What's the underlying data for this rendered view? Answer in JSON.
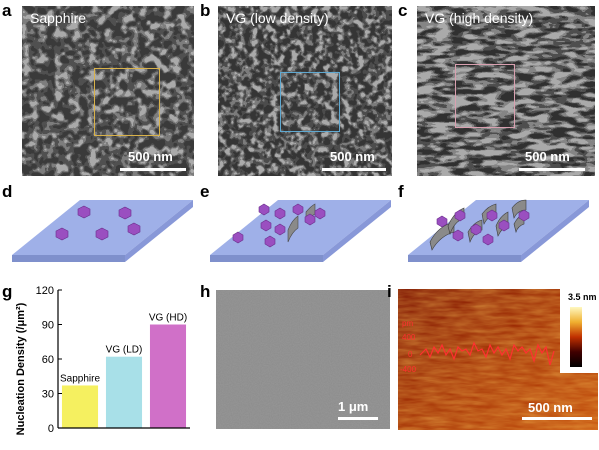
{
  "panels": {
    "a": {
      "letter": "a",
      "label": "Sapphire",
      "scale": "500 nm",
      "roi_color": "#d9b24a"
    },
    "b": {
      "letter": "b",
      "label": "VG (low density)",
      "scale": "500 nm",
      "roi_color": "#5fa8d0"
    },
    "c": {
      "letter": "c",
      "label": "VG (high density)",
      "scale": "500 nm",
      "roi_color": "#d9a0b0"
    },
    "d": {
      "letter": "d"
    },
    "e": {
      "letter": "e"
    },
    "f": {
      "letter": "f"
    },
    "g": {
      "letter": "g"
    },
    "h": {
      "letter": "h",
      "scale": "1 μm"
    },
    "i": {
      "letter": "i",
      "scale": "500 nm",
      "colorbar_max": "3.5 nm",
      "profile_y_labels": [
        "pm",
        "400",
        "0",
        "-400"
      ]
    }
  },
  "colors": {
    "substrate": "#9fb0e8",
    "hexagon": "#9a4fc0",
    "graphene": "#8a8a8a",
    "afm_low": "#8b1500",
    "afm_high": "#f0b030",
    "profile_line": "#ff3030"
  },
  "chart_data": {
    "type": "bar",
    "categories": [
      "Sapphire",
      "VG (LD)",
      "VG (HD)"
    ],
    "values": [
      37,
      62,
      90
    ],
    "bar_colors": [
      "#f5f060",
      "#a8e0e8",
      "#d070c8"
    ],
    "ylabel": "Nucleation Density (/μm²)",
    "ylim": [
      0,
      120
    ],
    "yticks": [
      0,
      30,
      60,
      90,
      120
    ],
    "grid": false
  }
}
